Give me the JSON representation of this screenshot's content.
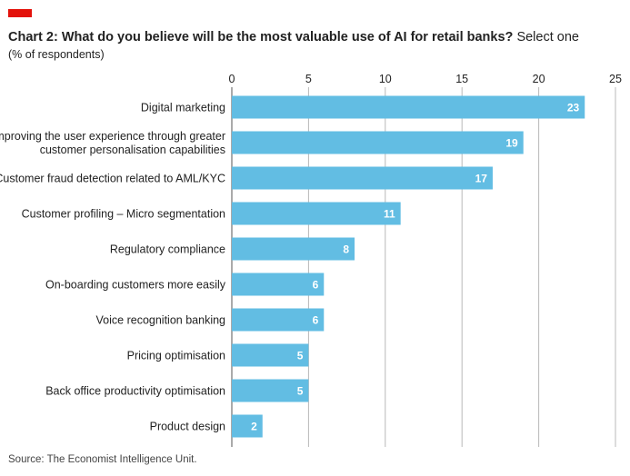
{
  "header": {
    "title_bold": "Chart 2: What do you believe will be the most valuable use of AI for retail banks?",
    "title_rest": "Select one",
    "subtitle": "(% of respondents)"
  },
  "footer": {
    "source": "Source: The Economist Intelligence Unit."
  },
  "colors": {
    "bar": "#62bde3",
    "accent": "#e3120b",
    "grid": "#b8b8b8"
  },
  "chart_data": {
    "type": "bar",
    "orientation": "horizontal",
    "title": "Chart 2: What do you believe will be the most valuable use of AI for retail banks? Select one",
    "ylabel": "(% of respondents)",
    "xlim": [
      0,
      25
    ],
    "xticks": [
      0,
      5,
      10,
      15,
      20,
      25
    ],
    "grid": true,
    "categories": [
      [
        "Digital marketing"
      ],
      [
        "Improving the user experience through greater",
        "customer personalisation capabilities"
      ],
      [
        "Customer fraud detection related to AML/KYC"
      ],
      [
        "Customer profiling – Micro segmentation"
      ],
      [
        "Regulatory compliance"
      ],
      [
        "On-boarding customers more easily"
      ],
      [
        "Voice recognition banking"
      ],
      [
        "Pricing optimisation"
      ],
      [
        "Back office productivity optimisation"
      ],
      [
        "Product design"
      ]
    ],
    "values": [
      23,
      19,
      17,
      11,
      8,
      6,
      6,
      5,
      5,
      2
    ]
  }
}
